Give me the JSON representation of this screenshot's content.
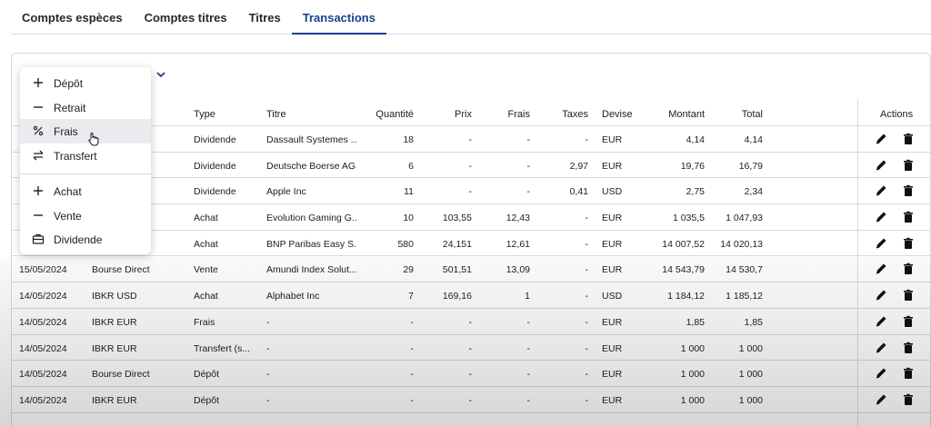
{
  "tabs": [
    "Comptes espèces",
    "Comptes titres",
    "Titres",
    "Transactions"
  ],
  "columns": {
    "type": "Type",
    "titre": "Titre",
    "quantite": "Quantité",
    "prix": "Prix",
    "frais": "Frais",
    "taxes": "Taxes",
    "devise": "Devise",
    "montant": "Montant",
    "total": "Total",
    "actions": "Actions"
  },
  "rows": [
    {
      "date": "",
      "compte": "",
      "type": "Dividende",
      "titre": "Dassault Systemes ...",
      "quantite": "18",
      "prix": "-",
      "frais": "-",
      "taxes": "-",
      "devise": "EUR",
      "montant": "4,14",
      "total": "4,14"
    },
    {
      "date": "",
      "compte": "",
      "type": "Dividende",
      "titre": "Deutsche Boerse AG",
      "quantite": "6",
      "prix": "-",
      "frais": "-",
      "taxes": "2,97",
      "devise": "EUR",
      "montant": "19,76",
      "total": "16,79"
    },
    {
      "date": "",
      "compte": "",
      "type": "Dividende",
      "titre": "Apple Inc",
      "quantite": "11",
      "prix": "-",
      "frais": "-",
      "taxes": "0,41",
      "devise": "USD",
      "montant": "2,75",
      "total": "2,34"
    },
    {
      "date": "",
      "compte": "",
      "type": "Achat",
      "titre": "Evolution Gaming G...",
      "quantite": "10",
      "prix": "103,55",
      "frais": "12,43",
      "taxes": "-",
      "devise": "EUR",
      "montant": "1 035,5",
      "total": "1 047,93"
    },
    {
      "date": "",
      "compte": "",
      "type": "Achat",
      "titre": "BNP Paribas Easy S...",
      "quantite": "580",
      "prix": "24,151",
      "frais": "12,61",
      "taxes": "-",
      "devise": "EUR",
      "montant": "14 007,52",
      "total": "14 020,13"
    },
    {
      "date": "15/05/2024",
      "compte": "Bourse Direct",
      "type": "Vente",
      "titre": "Amundi Index Solut...",
      "quantite": "29",
      "prix": "501,51",
      "frais": "13,09",
      "taxes": "-",
      "devise": "EUR",
      "montant": "14 543,79",
      "total": "14 530,7"
    },
    {
      "date": "14/05/2024",
      "compte": "IBKR USD",
      "type": "Achat",
      "titre": "Alphabet Inc",
      "quantite": "7",
      "prix": "169,16",
      "frais": "1",
      "taxes": "-",
      "devise": "USD",
      "montant": "1 184,12",
      "total": "1 185,12"
    },
    {
      "date": "14/05/2024",
      "compte": "IBKR EUR",
      "type": "Frais",
      "titre": "-",
      "quantite": "-",
      "prix": "-",
      "frais": "-",
      "taxes": "-",
      "devise": "EUR",
      "montant": "1,85",
      "total": "1,85"
    },
    {
      "date": "14/05/2024",
      "compte": "IBKR EUR",
      "type": "Transfert (s...",
      "titre": "-",
      "quantite": "-",
      "prix": "-",
      "frais": "-",
      "taxes": "-",
      "devise": "EUR",
      "montant": "1 000",
      "total": "1 000"
    },
    {
      "date": "14/05/2024",
      "compte": "Bourse Direct",
      "type": "Dépôt",
      "titre": "-",
      "quantite": "-",
      "prix": "-",
      "frais": "-",
      "taxes": "-",
      "devise": "EUR",
      "montant": "1 000",
      "total": "1 000"
    },
    {
      "date": "14/05/2024",
      "compte": "IBKR EUR",
      "type": "Dépôt",
      "titre": "-",
      "quantite": "-",
      "prix": "-",
      "frais": "-",
      "taxes": "-",
      "devise": "EUR",
      "montant": "1 000",
      "total": "1 000"
    }
  ],
  "menu": {
    "group1": [
      {
        "label": "Dépôt",
        "icon": "plus-icon"
      },
      {
        "label": "Retrait",
        "icon": "minus-icon"
      },
      {
        "label": "Frais",
        "icon": "percent-icon"
      },
      {
        "label": "Transfert",
        "icon": "transfer-icon"
      }
    ],
    "group2": [
      {
        "label": "Achat",
        "icon": "plus-icon"
      },
      {
        "label": "Vente",
        "icon": "minus-icon"
      },
      {
        "label": "Dividende",
        "icon": "briefcase-icon"
      }
    ]
  },
  "colors": {
    "accent": "#1a3f8f",
    "border": "#d6d9de"
  }
}
